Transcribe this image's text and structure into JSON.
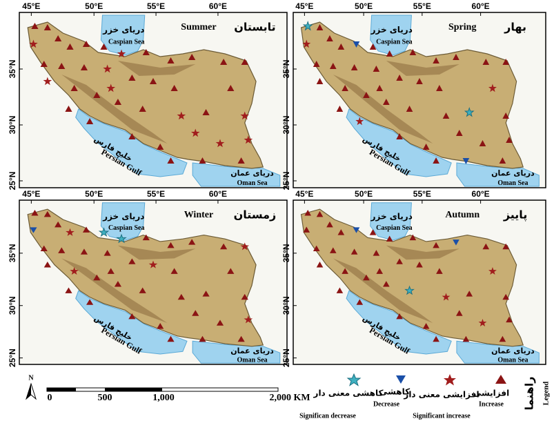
{
  "lon_labels": [
    "45°E",
    "50°E",
    "55°E",
    "60°E"
  ],
  "lat_labels": [
    "35°N",
    "30°N",
    "25°N"
  ],
  "panels": [
    {
      "fa": "تابستان",
      "en": "Summer"
    },
    {
      "fa": "بهار",
      "en": "Spring"
    },
    {
      "fa": "زمستان",
      "en": "Winter"
    },
    {
      "fa": "پاییز",
      "en": "Autumn"
    }
  ],
  "seas": {
    "caspian_fa": "دریای خزر",
    "caspian_en": "Caspian Sea",
    "gulf_fa": "خلیج فارس",
    "gulf_en": "Persian Gulf",
    "oman_fa": "دریای عمان",
    "oman_en": "Oman Sea"
  },
  "scale": {
    "north": "N",
    "ticks": [
      "0",
      "500",
      "1,000",
      "2,000 KM"
    ]
  },
  "legend": {
    "title_fa": "راهنما",
    "title_en": "Legend",
    "items": [
      {
        "fa": "کاهشی معنی دار",
        "en": "Significan decrease"
      },
      {
        "fa": "کاهشی",
        "en": "Decrease"
      },
      {
        "fa": "افزایشی معنی دار",
        "en": "Significant increase"
      },
      {
        "fa": "افزایشی",
        "en": "Increase"
      }
    ]
  }
}
